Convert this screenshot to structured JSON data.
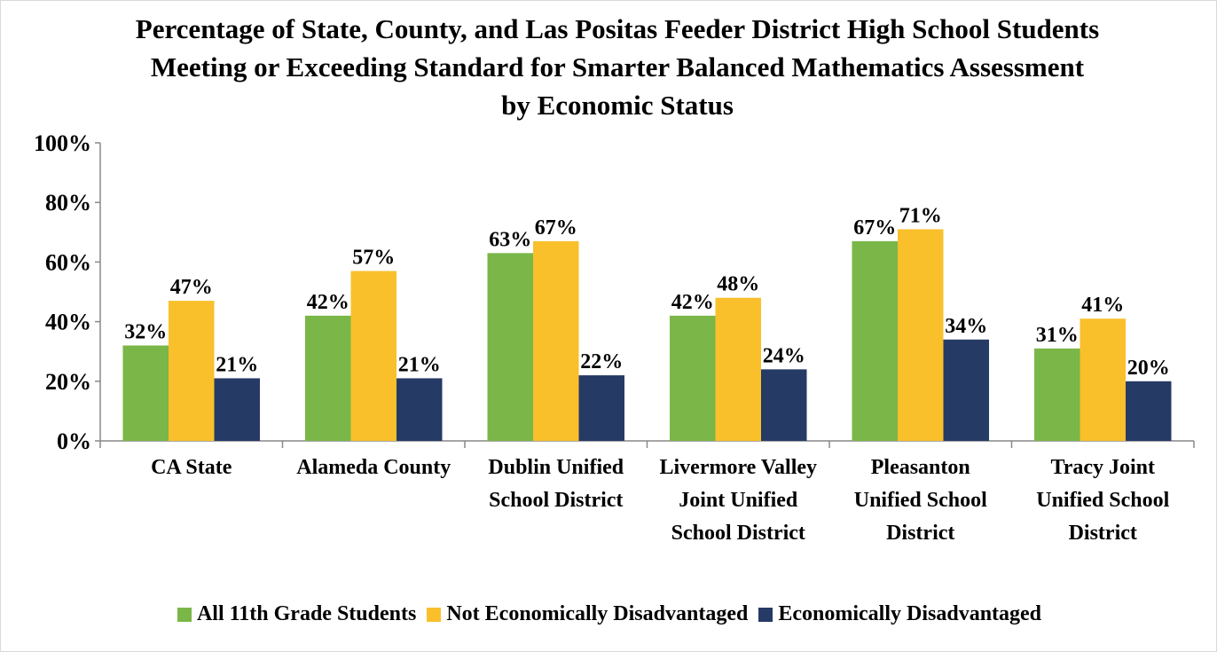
{
  "chart_data": {
    "type": "bar",
    "title": "Percentage of State, County, and Las Positas Feeder District High School Students Meeting or Exceeding Standard for Smarter Balanced Mathematics Assessment by Economic Status",
    "categories": [
      "CA State",
      "Alameda County",
      "Dublin Unified School District",
      "Livermore Valley Joint Unified School District",
      "Pleasanton Unified School District",
      "Tracy Joint Unified School District"
    ],
    "series": [
      {
        "name": "All 11th Grade Students",
        "color": "#7ab648",
        "values": [
          32,
          42,
          63,
          42,
          67,
          31
        ],
        "value_labels": [
          "32%",
          "42%",
          "63%",
          "42%",
          "67%",
          "31%"
        ]
      },
      {
        "name": "Not Economically Disadvantaged",
        "color": "#f9c02c",
        "values": [
          47,
          57,
          67,
          48,
          71,
          41
        ],
        "value_labels": [
          "47%",
          "57%",
          "67%",
          "48%",
          "71%",
          "41%"
        ]
      },
      {
        "name": "Economically Disadvantaged",
        "color": "#263a66",
        "values": [
          21,
          21,
          22,
          24,
          34,
          20
        ],
        "value_labels": [
          "21%",
          "21%",
          "22%",
          "24%",
          "34%",
          "20%"
        ]
      }
    ],
    "ylim": [
      0,
      100
    ],
    "yticks": [
      {
        "value": 0,
        "label": "0%"
      },
      {
        "value": 20,
        "label": "20%"
      },
      {
        "value": 40,
        "label": "40%"
      },
      {
        "value": 60,
        "label": "60%"
      },
      {
        "value": 80,
        "label": "80%"
      },
      {
        "value": 100,
        "label": "100%"
      }
    ],
    "grid": false,
    "legend": "bottom"
  }
}
